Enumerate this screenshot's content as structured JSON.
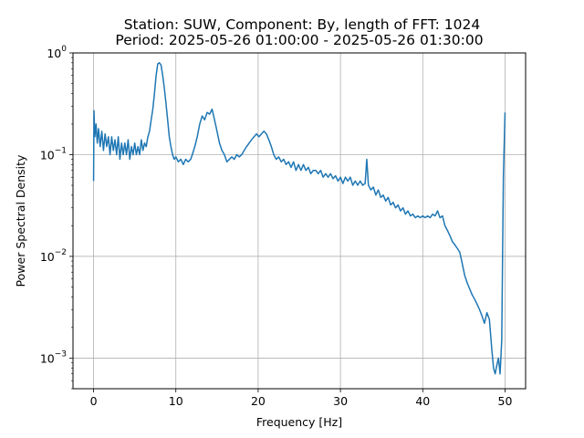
{
  "chart_data": {
    "type": "line",
    "title": "Station: SUW, Component: By, length of FFT: 1024",
    "subtitle": "Period: 2025-05-26 01:00:00 - 2025-05-26 01:30:00",
    "xlabel": "Frequency [Hz]",
    "ylabel": "Power Spectral Density",
    "xlim": [
      -2.5,
      52.5
    ],
    "ylim": [
      0.0005,
      1.0
    ],
    "yscale": "log",
    "grid": true,
    "x_ticks": [
      {
        "value": 0,
        "label": "0"
      },
      {
        "value": 10,
        "label": "10"
      },
      {
        "value": 20,
        "label": "20"
      },
      {
        "value": 30,
        "label": "30"
      },
      {
        "value": 40,
        "label": "40"
      },
      {
        "value": 50,
        "label": "50"
      }
    ],
    "y_ticks": [
      {
        "value": 0.001,
        "base": "10",
        "exp": "−3"
      },
      {
        "value": 0.01,
        "base": "10",
        "exp": "−2"
      },
      {
        "value": 0.1,
        "base": "10",
        "exp": "−1"
      },
      {
        "value": 1.0,
        "base": "10",
        "exp": "0"
      }
    ],
    "series": [
      {
        "color": "#1f77b4",
        "points": [
          [
            0.0,
            0.055
          ],
          [
            0.05,
            0.27
          ],
          [
            0.15,
            0.15
          ],
          [
            0.3,
            0.2
          ],
          [
            0.45,
            0.13
          ],
          [
            0.6,
            0.18
          ],
          [
            0.8,
            0.12
          ],
          [
            1.0,
            0.17
          ],
          [
            1.2,
            0.11
          ],
          [
            1.4,
            0.16
          ],
          [
            1.6,
            0.12
          ],
          [
            1.8,
            0.15
          ],
          [
            2.0,
            0.1
          ],
          [
            2.2,
            0.15
          ],
          [
            2.4,
            0.11
          ],
          [
            2.6,
            0.14
          ],
          [
            2.8,
            0.1
          ],
          [
            3.0,
            0.15
          ],
          [
            3.2,
            0.09
          ],
          [
            3.4,
            0.13
          ],
          [
            3.6,
            0.1
          ],
          [
            3.8,
            0.13
          ],
          [
            4.0,
            0.1
          ],
          [
            4.2,
            0.14
          ],
          [
            4.4,
            0.09
          ],
          [
            4.6,
            0.12
          ],
          [
            4.8,
            0.1
          ],
          [
            5.0,
            0.13
          ],
          [
            5.2,
            0.1
          ],
          [
            5.4,
            0.12
          ],
          [
            5.6,
            0.1
          ],
          [
            5.8,
            0.14
          ],
          [
            6.0,
            0.11
          ],
          [
            6.2,
            0.13
          ],
          [
            6.4,
            0.12
          ],
          [
            6.6,
            0.15
          ],
          [
            6.8,
            0.17
          ],
          [
            7.0,
            0.22
          ],
          [
            7.2,
            0.28
          ],
          [
            7.4,
            0.4
          ],
          [
            7.6,
            0.6
          ],
          [
            7.8,
            0.78
          ],
          [
            8.0,
            0.8
          ],
          [
            8.2,
            0.76
          ],
          [
            8.4,
            0.6
          ],
          [
            8.6,
            0.45
          ],
          [
            8.8,
            0.32
          ],
          [
            9.0,
            0.22
          ],
          [
            9.2,
            0.15
          ],
          [
            9.4,
            0.12
          ],
          [
            9.6,
            0.1
          ],
          [
            9.8,
            0.09
          ],
          [
            10.0,
            0.095
          ],
          [
            10.3,
            0.085
          ],
          [
            10.6,
            0.09
          ],
          [
            10.9,
            0.08
          ],
          [
            11.2,
            0.09
          ],
          [
            11.5,
            0.085
          ],
          [
            11.8,
            0.09
          ],
          [
            12.0,
            0.1
          ],
          [
            12.3,
            0.12
          ],
          [
            12.6,
            0.15
          ],
          [
            12.9,
            0.2
          ],
          [
            13.2,
            0.24
          ],
          [
            13.5,
            0.22
          ],
          [
            13.8,
            0.26
          ],
          [
            14.1,
            0.25
          ],
          [
            14.4,
            0.28
          ],
          [
            14.7,
            0.22
          ],
          [
            15.0,
            0.17
          ],
          [
            15.3,
            0.13
          ],
          [
            15.6,
            0.11
          ],
          [
            15.9,
            0.1
          ],
          [
            16.2,
            0.085
          ],
          [
            16.5,
            0.09
          ],
          [
            16.8,
            0.095
          ],
          [
            17.1,
            0.09
          ],
          [
            17.4,
            0.1
          ],
          [
            17.7,
            0.095
          ],
          [
            18.0,
            0.1
          ],
          [
            18.3,
            0.11
          ],
          [
            18.6,
            0.12
          ],
          [
            18.9,
            0.13
          ],
          [
            19.2,
            0.14
          ],
          [
            19.5,
            0.15
          ],
          [
            19.8,
            0.16
          ],
          [
            20.1,
            0.15
          ],
          [
            20.4,
            0.16
          ],
          [
            20.7,
            0.17
          ],
          [
            21.0,
            0.16
          ],
          [
            21.3,
            0.14
          ],
          [
            21.6,
            0.12
          ],
          [
            21.9,
            0.1
          ],
          [
            22.2,
            0.09
          ],
          [
            22.5,
            0.095
          ],
          [
            22.8,
            0.085
          ],
          [
            23.1,
            0.09
          ],
          [
            23.4,
            0.08
          ],
          [
            23.7,
            0.085
          ],
          [
            24.0,
            0.075
          ],
          [
            24.3,
            0.085
          ],
          [
            24.6,
            0.07
          ],
          [
            24.9,
            0.08
          ],
          [
            25.2,
            0.07
          ],
          [
            25.5,
            0.08
          ],
          [
            25.8,
            0.07
          ],
          [
            26.1,
            0.075
          ],
          [
            26.4,
            0.065
          ],
          [
            26.7,
            0.07
          ],
          [
            27.0,
            0.07
          ],
          [
            27.3,
            0.065
          ],
          [
            27.6,
            0.07
          ],
          [
            27.9,
            0.06
          ],
          [
            28.2,
            0.065
          ],
          [
            28.5,
            0.06
          ],
          [
            28.8,
            0.065
          ],
          [
            29.1,
            0.058
          ],
          [
            29.4,
            0.062
          ],
          [
            29.7,
            0.055
          ],
          [
            30.0,
            0.06
          ],
          [
            30.3,
            0.052
          ],
          [
            30.6,
            0.06
          ],
          [
            30.9,
            0.055
          ],
          [
            31.2,
            0.06
          ],
          [
            31.5,
            0.05
          ],
          [
            31.8,
            0.055
          ],
          [
            32.1,
            0.05
          ],
          [
            32.4,
            0.055
          ],
          [
            32.7,
            0.05
          ],
          [
            33.0,
            0.052
          ],
          [
            33.2,
            0.09
          ],
          [
            33.4,
            0.05
          ],
          [
            33.7,
            0.045
          ],
          [
            34.0,
            0.048
          ],
          [
            34.3,
            0.04
          ],
          [
            34.6,
            0.045
          ],
          [
            34.9,
            0.038
          ],
          [
            35.2,
            0.04
          ],
          [
            35.5,
            0.035
          ],
          [
            35.8,
            0.038
          ],
          [
            36.1,
            0.032
          ],
          [
            36.4,
            0.034
          ],
          [
            36.7,
            0.03
          ],
          [
            37.0,
            0.032
          ],
          [
            37.3,
            0.028
          ],
          [
            37.6,
            0.03
          ],
          [
            37.9,
            0.026
          ],
          [
            38.2,
            0.028
          ],
          [
            38.5,
            0.025
          ],
          [
            38.8,
            0.026
          ],
          [
            39.1,
            0.024
          ],
          [
            39.4,
            0.025
          ],
          [
            39.7,
            0.024
          ],
          [
            40.0,
            0.025
          ],
          [
            40.3,
            0.024
          ],
          [
            40.6,
            0.025
          ],
          [
            40.9,
            0.024
          ],
          [
            41.2,
            0.026
          ],
          [
            41.5,
            0.025
          ],
          [
            41.8,
            0.028
          ],
          [
            42.1,
            0.024
          ],
          [
            42.4,
            0.025
          ],
          [
            42.7,
            0.02
          ],
          [
            43.0,
            0.018
          ],
          [
            43.3,
            0.016
          ],
          [
            43.6,
            0.014
          ],
          [
            43.9,
            0.013
          ],
          [
            44.2,
            0.012
          ],
          [
            44.5,
            0.011
          ],
          [
            44.8,
            0.0085
          ],
          [
            45.1,
            0.0065
          ],
          [
            45.4,
            0.0055
          ],
          [
            45.7,
            0.0048
          ],
          [
            46.0,
            0.0042
          ],
          [
            46.3,
            0.0038
          ],
          [
            46.6,
            0.0034
          ],
          [
            46.9,
            0.003
          ],
          [
            47.2,
            0.0026
          ],
          [
            47.5,
            0.0022
          ],
          [
            47.8,
            0.0028
          ],
          [
            48.1,
            0.0024
          ],
          [
            48.4,
            0.0012
          ],
          [
            48.6,
            0.0008
          ],
          [
            48.8,
            0.0007
          ],
          [
            49.0,
            0.00085
          ],
          [
            49.2,
            0.001
          ],
          [
            49.4,
            0.0007
          ],
          [
            49.6,
            0.0015
          ],
          [
            49.8,
            0.06
          ],
          [
            50.0,
            0.26
          ]
        ]
      }
    ]
  }
}
